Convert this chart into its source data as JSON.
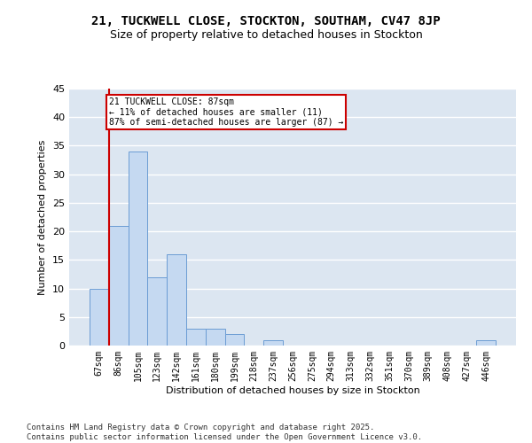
{
  "title1": "21, TUCKWELL CLOSE, STOCKTON, SOUTHAM, CV47 8JP",
  "title2": "Size of property relative to detached houses in Stockton",
  "xlabel": "Distribution of detached houses by size in Stockton",
  "ylabel": "Number of detached properties",
  "categories": [
    "67sqm",
    "86sqm",
    "105sqm",
    "123sqm",
    "142sqm",
    "161sqm",
    "180sqm",
    "199sqm",
    "218sqm",
    "237sqm",
    "256sqm",
    "275sqm",
    "294sqm",
    "313sqm",
    "332sqm",
    "351sqm",
    "370sqm",
    "389sqm",
    "408sqm",
    "427sqm",
    "446sqm"
  ],
  "values": [
    10,
    21,
    34,
    12,
    16,
    3,
    3,
    2,
    0,
    1,
    0,
    0,
    0,
    0,
    0,
    0,
    0,
    0,
    0,
    0,
    1
  ],
  "bar_color": "#c5d9f1",
  "bar_edge_color": "#6b9cd4",
  "background_color": "#dce6f1",
  "grid_color": "#ffffff",
  "vline_x_index": 1,
  "vline_color": "#cc0000",
  "annotation_text": "21 TUCKWELL CLOSE: 87sqm\n← 11% of detached houses are smaller (11)\n87% of semi-detached houses are larger (87) →",
  "annotation_box_color": "#ffffff",
  "annotation_box_edge_color": "#cc0000",
  "ylim": [
    0,
    45
  ],
  "yticks": [
    0,
    5,
    10,
    15,
    20,
    25,
    30,
    35,
    40,
    45
  ],
  "footer": "Contains HM Land Registry data © Crown copyright and database right 2025.\nContains public sector information licensed under the Open Government Licence v3.0.",
  "title1_fontsize": 10,
  "title2_fontsize": 9,
  "axis_fontsize": 8,
  "tick_fontsize": 7,
  "footer_fontsize": 6.5
}
